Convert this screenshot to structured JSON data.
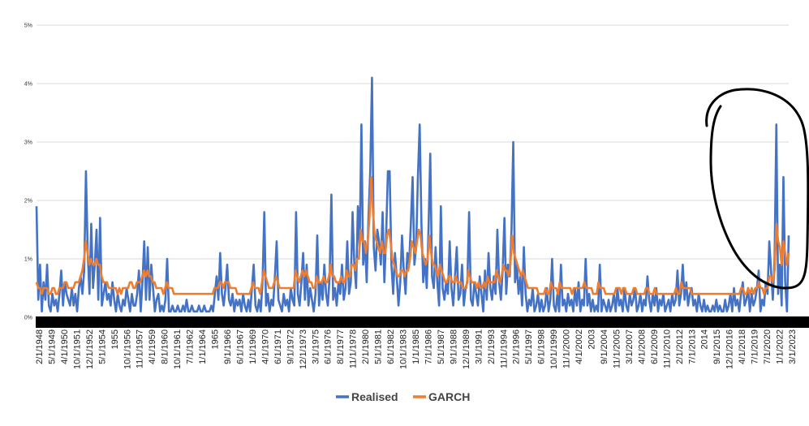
{
  "chart_data": {
    "type": "line",
    "title": "",
    "xlabel": "",
    "ylabel": "",
    "ylim": [
      0,
      5
    ],
    "y_ticks": [
      "0%",
      "1%",
      "2%",
      "3%",
      "4%",
      "5%"
    ],
    "grid": true,
    "legend_position": "bottom",
    "x_tick_labels": [
      "2/1/1948",
      "5/1/1949",
      "4/1/1950",
      "10/1/1951",
      "12/1/1952",
      "5/1/1954",
      "1955",
      "10/1/1956",
      "11/1/1957",
      "4/1/1959",
      "8/1/1960",
      "10/1/1961",
      "7/1/1962",
      "1/1/1964",
      "1965",
      "9/1/1966",
      "6/1/1967",
      "1/1/1969",
      "4/1/1970",
      "6/1/1971",
      "9/1/1972",
      "12/1/1973",
      "3/1/1975",
      "6/1/1976",
      "8/1/1977",
      "11/1/1978",
      "2/1/1980",
      "5/1/1981",
      "6/1/1982",
      "10/1/1983",
      "1/1/1985",
      "7/1/1986",
      "5/1/1987",
      "9/1/1988",
      "12/1/1989",
      "3/1/1991",
      "2/1/1993",
      "11/1/1994",
      "2/1/1996",
      "5/1/1997",
      "6/1/1998",
      "10/1/1999",
      "11/1/2000",
      "4/1/2002",
      "2003",
      "9/1/2004",
      "11/1/2005",
      "3/1/2007",
      "4/1/2008",
      "6/1/2009",
      "11/1/2010",
      "2/1/2012",
      "7/1/2013",
      "2014",
      "9/1/2015",
      "12/1/2016",
      "4/1/2018",
      "7/1/2019",
      "7/1/2020",
      "1/1/2022",
      "3/1/2023"
    ],
    "series": [
      {
        "name": "Realised",
        "color": "#4472C4",
        "values": [
          1.9,
          0.3,
          0.9,
          0.1,
          0.6,
          0.3,
          0.9,
          0.2,
          0.1,
          0.4,
          0.2,
          0.3,
          0.1,
          0.4,
          0.8,
          0.2,
          0.6,
          0.4,
          0.3,
          0.2,
          0.5,
          0.2,
          0.4,
          0.1,
          0.5,
          0.7,
          0.4,
          0.8,
          2.5,
          1.1,
          0.4,
          1.6,
          0.5,
          0.9,
          1.5,
          0.3,
          1.7,
          0.2,
          0.4,
          0.6,
          0.3,
          0.4,
          0.2,
          0.6,
          0.3,
          0.1,
          0.4,
          0.2,
          0.1,
          0.3,
          0.2,
          0.5,
          0.3,
          0.1,
          0.4,
          0.2,
          0.2,
          0.4,
          0.8,
          0.1,
          0.6,
          1.3,
          0.3,
          1.2,
          0.3,
          0.9,
          0.5,
          0.1,
          0.3,
          0.4,
          0.1,
          0.2,
          0.1,
          0.3,
          1.0,
          0.1,
          0.1,
          0.2,
          0.1,
          0.1,
          0.2,
          0.1,
          0.1,
          0.2,
          0.1,
          0.3,
          0.1,
          0.1,
          0.2,
          0.1,
          0.1,
          0.1,
          0.2,
          0.1,
          0.1,
          0.2,
          0.1,
          0.1,
          0.1,
          0.2,
          0.1,
          0.4,
          0.7,
          0.3,
          1.1,
          0.4,
          0.2,
          0.5,
          0.9,
          0.3,
          0.2,
          0.4,
          0.1,
          0.3,
          0.2,
          0.3,
          0.1,
          0.4,
          0.2,
          0.1,
          0.3,
          0.1,
          0.5,
          0.9,
          0.2,
          0.1,
          0.3,
          0.1,
          0.6,
          1.8,
          0.2,
          0.4,
          0.1,
          0.3,
          0.2,
          0.7,
          1.3,
          0.3,
          0.2,
          0.1,
          0.4,
          0.2,
          0.3,
          0.1,
          0.5,
          0.3,
          0.2,
          1.8,
          0.4,
          0.2,
          0.6,
          1.1,
          0.3,
          0.9,
          0.2,
          0.5,
          0.3,
          0.1,
          0.4,
          1.4,
          0.2,
          0.6,
          0.3,
          0.9,
          0.4,
          0.2,
          0.7,
          2.1,
          0.3,
          0.5,
          0.2,
          0.6,
          0.4,
          0.9,
          0.3,
          0.5,
          1.3,
          0.4,
          0.6,
          1.8,
          0.9,
          0.5,
          1.9,
          1.2,
          3.3,
          0.9,
          1.3,
          0.6,
          1.7,
          2.5,
          4.1,
          1.2,
          0.8,
          1.5,
          1.3,
          0.9,
          1.8,
          0.6,
          1.4,
          2.5,
          2.5,
          0.9,
          0.4,
          1.1,
          0.7,
          0.2,
          0.6,
          1.4,
          0.8,
          0.4,
          1.1,
          0.9,
          1.6,
          2.4,
          0.9,
          1.2,
          2.4,
          3.3,
          1.6,
          0.6,
          1.0,
          0.5,
          1.5,
          2.8,
          0.7,
          0.5,
          1.2,
          0.6,
          0.2,
          1.9,
          0.5,
          0.3,
          0.6,
          0.4,
          1.3,
          0.5,
          0.2,
          0.7,
          1.2,
          0.3,
          0.4,
          0.9,
          0.2,
          0.5,
          0.6,
          1.8,
          0.3,
          0.2,
          0.6,
          0.4,
          0.2,
          0.7,
          0.4,
          0.1,
          0.8,
          0.3,
          1.1,
          0.5,
          0.3,
          0.7,
          0.4,
          1.5,
          0.6,
          0.3,
          0.8,
          1.7,
          0.4,
          0.9,
          0.7,
          1.5,
          3.0,
          0.6,
          0.9,
          0.4,
          0.7,
          0.2,
          1.2,
          0.4,
          0.1,
          0.3,
          0.2,
          0.5,
          0.1,
          0.2,
          0.4,
          0.1,
          0.3,
          0.1,
          0.2,
          0.5,
          0.1,
          0.3,
          1.0,
          0.2,
          0.1,
          0.4,
          0.1,
          0.9,
          0.2,
          0.3,
          0.1,
          0.4,
          0.2,
          0.3,
          0.1,
          0.5,
          0.2,
          0.6,
          0.1,
          0.3,
          0.2,
          1.0,
          0.2,
          0.4,
          0.1,
          0.3,
          0.1,
          0.2,
          0.1,
          0.9,
          0.1,
          0.3,
          0.2,
          0.1,
          0.3,
          0.1,
          0.2,
          0.4,
          0.1,
          0.5,
          0.2,
          0.3,
          0.1,
          0.5,
          0.2,
          0.1,
          0.4,
          0.2,
          0.3,
          0.5,
          0.1,
          0.2,
          0.4,
          0.1,
          0.3,
          0.2,
          0.7,
          0.3,
          0.1,
          0.4,
          0.2,
          0.5,
          0.1,
          0.3,
          0.2,
          0.4,
          0.1,
          0.2,
          0.3,
          0.1,
          0.4,
          0.2,
          0.3,
          0.8,
          0.2,
          0.4,
          0.9,
          0.3,
          0.6,
          0.2,
          0.4,
          0.5,
          0.2,
          0.3,
          0.1,
          0.4,
          0.2,
          0.1,
          0.3,
          0.1,
          0.2,
          0.1,
          0.1,
          0.2,
          0.1,
          0.3,
          0.1,
          0.2,
          0.1,
          0.1,
          0.3,
          0.1,
          0.2,
          0.4,
          0.1,
          0.5,
          0.2,
          0.3,
          0.1,
          0.4,
          0.6,
          0.2,
          0.3,
          0.5,
          0.1,
          0.4,
          0.2,
          0.3,
          0.5,
          0.8,
          0.1,
          0.3,
          0.2,
          0.6,
          0.4,
          1.3,
          0.8,
          0.3,
          1.0,
          3.3,
          0.4,
          0.9,
          0.2,
          2.4,
          0.6,
          0.1,
          1.4
        ]
      },
      {
        "name": "GARCH",
        "color": "#ED7D31",
        "values": [
          0.6,
          0.5,
          0.5,
          0.4,
          0.5,
          0.5,
          0.5,
          0.4,
          0.4,
          0.5,
          0.5,
          0.4,
          0.4,
          0.5,
          0.5,
          0.5,
          0.6,
          0.6,
          0.5,
          0.5,
          0.5,
          0.5,
          0.6,
          0.6,
          0.6,
          0.7,
          0.8,
          1.0,
          1.3,
          1.1,
          0.9,
          1.0,
          0.9,
          0.9,
          1.0,
          0.9,
          0.9,
          0.7,
          0.6,
          0.6,
          0.6,
          0.5,
          0.5,
          0.5,
          0.5,
          0.5,
          0.4,
          0.5,
          0.4,
          0.5,
          0.5,
          0.5,
          0.5,
          0.6,
          0.6,
          0.5,
          0.5,
          0.6,
          0.6,
          0.6,
          0.7,
          0.8,
          0.7,
          0.8,
          0.7,
          0.7,
          0.6,
          0.6,
          0.5,
          0.5,
          0.5,
          0.5,
          0.4,
          0.5,
          0.6,
          0.5,
          0.5,
          0.5,
          0.4,
          0.4,
          0.4,
          0.4,
          0.4,
          0.4,
          0.4,
          0.4,
          0.4,
          0.4,
          0.4,
          0.4,
          0.4,
          0.4,
          0.4,
          0.4,
          0.4,
          0.4,
          0.4,
          0.4,
          0.4,
          0.4,
          0.4,
          0.5,
          0.5,
          0.5,
          0.6,
          0.6,
          0.5,
          0.6,
          0.6,
          0.6,
          0.5,
          0.5,
          0.5,
          0.5,
          0.4,
          0.4,
          0.4,
          0.4,
          0.4,
          0.4,
          0.4,
          0.4,
          0.5,
          0.6,
          0.5,
          0.5,
          0.5,
          0.4,
          0.6,
          0.8,
          0.7,
          0.6,
          0.5,
          0.5,
          0.5,
          0.6,
          0.7,
          0.6,
          0.5,
          0.5,
          0.5,
          0.5,
          0.5,
          0.5,
          0.5,
          0.5,
          0.5,
          0.8,
          0.7,
          0.6,
          0.7,
          0.8,
          0.7,
          0.8,
          0.7,
          0.6,
          0.6,
          0.5,
          0.5,
          0.7,
          0.6,
          0.6,
          0.6,
          0.7,
          0.6,
          0.6,
          0.7,
          0.9,
          0.7,
          0.7,
          0.6,
          0.6,
          0.6,
          0.7,
          0.6,
          0.6,
          0.8,
          0.7,
          0.7,
          0.9,
          0.9,
          0.8,
          1.0,
          1.0,
          1.5,
          1.3,
          1.3,
          1.1,
          1.3,
          1.7,
          2.4,
          1.8,
          1.4,
          1.3,
          1.2,
          1.1,
          1.3,
          1.1,
          1.1,
          1.4,
          1.5,
          1.3,
          1.0,
          0.9,
          0.8,
          0.7,
          0.7,
          0.8,
          0.8,
          0.7,
          0.8,
          0.8,
          1.0,
          1.3,
          1.2,
          1.1,
          1.3,
          1.5,
          1.4,
          1.1,
          1.0,
          0.9,
          1.0,
          1.4,
          1.1,
          0.9,
          0.9,
          0.8,
          0.7,
          0.9,
          0.8,
          0.7,
          0.6,
          0.6,
          0.7,
          0.7,
          0.6,
          0.6,
          0.7,
          0.6,
          0.6,
          0.6,
          0.5,
          0.5,
          0.5,
          0.8,
          0.7,
          0.6,
          0.6,
          0.6,
          0.5,
          0.6,
          0.5,
          0.5,
          0.6,
          0.5,
          0.7,
          0.6,
          0.6,
          0.6,
          0.6,
          0.8,
          0.7,
          0.6,
          0.7,
          0.9,
          0.8,
          0.8,
          0.7,
          0.9,
          1.4,
          1.1,
          1.0,
          0.9,
          0.8,
          0.7,
          0.8,
          0.7,
          0.6,
          0.5,
          0.5,
          0.5,
          0.5,
          0.5,
          0.5,
          0.4,
          0.4,
          0.4,
          0.4,
          0.5,
          0.4,
          0.4,
          0.6,
          0.5,
          0.5,
          0.5,
          0.4,
          0.6,
          0.5,
          0.5,
          0.5,
          0.5,
          0.5,
          0.5,
          0.4,
          0.5,
          0.5,
          0.5,
          0.5,
          0.5,
          0.5,
          0.6,
          0.5,
          0.5,
          0.5,
          0.5,
          0.4,
          0.4,
          0.4,
          0.6,
          0.5,
          0.5,
          0.5,
          0.4,
          0.4,
          0.4,
          0.4,
          0.4,
          0.4,
          0.5,
          0.5,
          0.5,
          0.4,
          0.5,
          0.5,
          0.4,
          0.4,
          0.4,
          0.4,
          0.5,
          0.5,
          0.4,
          0.4,
          0.4,
          0.4,
          0.4,
          0.5,
          0.5,
          0.4,
          0.4,
          0.4,
          0.5,
          0.4,
          0.4,
          0.4,
          0.4,
          0.4,
          0.4,
          0.4,
          0.4,
          0.4,
          0.4,
          0.4,
          0.5,
          0.4,
          0.4,
          0.6,
          0.5,
          0.5,
          0.5,
          0.5,
          0.5,
          0.4,
          0.4,
          0.4,
          0.4,
          0.4,
          0.4,
          0.4,
          0.4,
          0.4,
          0.4,
          0.4,
          0.4,
          0.4,
          0.4,
          0.4,
          0.4,
          0.4,
          0.4,
          0.4,
          0.4,
          0.4,
          0.4,
          0.4,
          0.4,
          0.4,
          0.4,
          0.4,
          0.4,
          0.5,
          0.5,
          0.4,
          0.4,
          0.5,
          0.4,
          0.5,
          0.4,
          0.5,
          0.5,
          0.6,
          0.5,
          0.5,
          0.4,
          0.5,
          0.5,
          0.7,
          0.7,
          0.6,
          0.8,
          1.6,
          1.3,
          1.2,
          0.9,
          1.3,
          1.1,
          0.9,
          1.1
        ]
      }
    ]
  }
}
